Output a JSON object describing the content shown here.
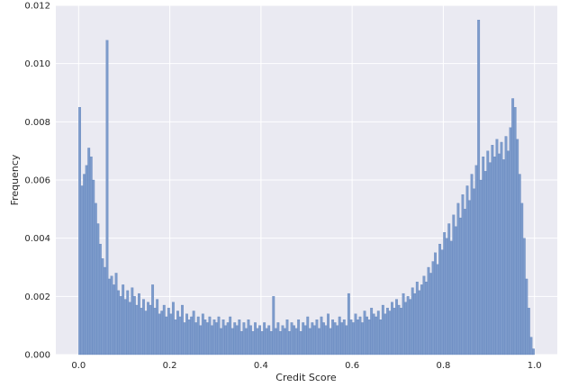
{
  "chart_data": {
    "type": "bar",
    "title": "",
    "xlabel": "Credit Score",
    "ylabel": "Frequency",
    "xlim": [
      -0.05,
      1.05
    ],
    "ylim": [
      0,
      0.012
    ],
    "xticks": [
      0.0,
      0.2,
      0.4,
      0.6,
      0.8,
      1.0
    ],
    "yticks": [
      0.0,
      0.002,
      0.004,
      0.006,
      0.008,
      0.01,
      0.012
    ],
    "xtick_labels": [
      "0.0",
      "0.2",
      "0.4",
      "0.6",
      "0.8",
      "1.0"
    ],
    "ytick_labels": [
      "0.000",
      "0.002",
      "0.004",
      "0.006",
      "0.008",
      "0.010",
      "0.012"
    ],
    "grid": true,
    "legend": "none",
    "bin_width": 0.005,
    "x": [
      0.0025,
      0.0075,
      0.0125,
      0.0175,
      0.0225,
      0.0275,
      0.0325,
      0.0375,
      0.0425,
      0.0475,
      0.0525,
      0.0575,
      0.0625,
      0.0675,
      0.0725,
      0.0775,
      0.0825,
      0.0875,
      0.0925,
      0.0975,
      0.1025,
      0.1075,
      0.1125,
      0.1175,
      0.1225,
      0.1275,
      0.1325,
      0.1375,
      0.1425,
      0.1475,
      0.1525,
      0.1575,
      0.1625,
      0.1675,
      0.1725,
      0.1775,
      0.1825,
      0.1875,
      0.1925,
      0.1975,
      0.2025,
      0.2075,
      0.2125,
      0.2175,
      0.2225,
      0.2275,
      0.2325,
      0.2375,
      0.2425,
      0.2475,
      0.2525,
      0.2575,
      0.2625,
      0.2675,
      0.2725,
      0.2775,
      0.2825,
      0.2875,
      0.2925,
      0.2975,
      0.3025,
      0.3075,
      0.3125,
      0.3175,
      0.3225,
      0.3275,
      0.3325,
      0.3375,
      0.3425,
      0.3475,
      0.3525,
      0.3575,
      0.3625,
      0.3675,
      0.3725,
      0.3775,
      0.3825,
      0.3875,
      0.3925,
      0.3975,
      0.4025,
      0.4075,
      0.4125,
      0.4175,
      0.4225,
      0.4275,
      0.4325,
      0.4375,
      0.4425,
      0.4475,
      0.4525,
      0.4575,
      0.4625,
      0.4675,
      0.4725,
      0.4775,
      0.4825,
      0.4875,
      0.4925,
      0.4975,
      0.5025,
      0.5075,
      0.5125,
      0.5175,
      0.5225,
      0.5275,
      0.5325,
      0.5375,
      0.5425,
      0.5475,
      0.5525,
      0.5575,
      0.5625,
      0.5675,
      0.5725,
      0.5775,
      0.5825,
      0.5875,
      0.5925,
      0.5975,
      0.6025,
      0.6075,
      0.6125,
      0.6175,
      0.6225,
      0.6275,
      0.6325,
      0.6375,
      0.6425,
      0.6475,
      0.6525,
      0.6575,
      0.6625,
      0.6675,
      0.6725,
      0.6775,
      0.6825,
      0.6875,
      0.6925,
      0.6975,
      0.7025,
      0.7075,
      0.7125,
      0.7175,
      0.7225,
      0.7275,
      0.7325,
      0.7375,
      0.7425,
      0.7475,
      0.7525,
      0.7575,
      0.7625,
      0.7675,
      0.7725,
      0.7775,
      0.7825,
      0.7875,
      0.7925,
      0.7975,
      0.8025,
      0.8075,
      0.8125,
      0.8175,
      0.8225,
      0.8275,
      0.8325,
      0.8375,
      0.8425,
      0.8475,
      0.8525,
      0.8575,
      0.8625,
      0.8675,
      0.8725,
      0.8775,
      0.8825,
      0.8875,
      0.8925,
      0.8975,
      0.9025,
      0.9075,
      0.9125,
      0.9175,
      0.9225,
      0.9275,
      0.9325,
      0.9375,
      0.9425,
      0.9475,
      0.9525,
      0.9575,
      0.9625,
      0.9675,
      0.9725,
      0.9775,
      0.9825,
      0.9875,
      0.9925,
      0.9975
    ],
    "values": [
      0.0085,
      0.0058,
      0.0062,
      0.0065,
      0.0071,
      0.0068,
      0.006,
      0.0052,
      0.0045,
      0.0038,
      0.0033,
      0.003,
      0.0108,
      0.0026,
      0.0027,
      0.0024,
      0.0028,
      0.0022,
      0.002,
      0.0024,
      0.0019,
      0.0022,
      0.0018,
      0.0023,
      0.002,
      0.0017,
      0.0021,
      0.0016,
      0.0019,
      0.0015,
      0.0018,
      0.0017,
      0.0024,
      0.0016,
      0.0019,
      0.0014,
      0.0015,
      0.0017,
      0.0013,
      0.0016,
      0.0014,
      0.0018,
      0.0012,
      0.0015,
      0.0013,
      0.0017,
      0.0011,
      0.0014,
      0.0012,
      0.0013,
      0.0015,
      0.0011,
      0.0013,
      0.001,
      0.0014,
      0.0012,
      0.0011,
      0.0013,
      0.001,
      0.0012,
      0.0011,
      0.0013,
      0.0009,
      0.0012,
      0.001,
      0.0011,
      0.0013,
      0.0009,
      0.0011,
      0.001,
      0.0012,
      0.0008,
      0.0011,
      0.0009,
      0.0012,
      0.001,
      0.0008,
      0.0011,
      0.0009,
      0.001,
      0.0008,
      0.0011,
      0.0009,
      0.001,
      0.0008,
      0.002,
      0.0009,
      0.0011,
      0.0008,
      0.001,
      0.0009,
      0.0012,
      0.0008,
      0.0011,
      0.001,
      0.0009,
      0.0012,
      0.0008,
      0.0011,
      0.001,
      0.0013,
      0.0009,
      0.0011,
      0.001,
      0.0012,
      0.0009,
      0.0013,
      0.0011,
      0.001,
      0.0014,
      0.0009,
      0.0012,
      0.0011,
      0.001,
      0.0013,
      0.0011,
      0.0012,
      0.001,
      0.0021,
      0.0012,
      0.0011,
      0.0014,
      0.0012,
      0.0013,
      0.0011,
      0.0015,
      0.0013,
      0.0012,
      0.0016,
      0.0014,
      0.0013,
      0.0015,
      0.0012,
      0.0017,
      0.0014,
      0.0016,
      0.0015,
      0.0018,
      0.0016,
      0.0019,
      0.0017,
      0.0016,
      0.0021,
      0.0018,
      0.002,
      0.0019,
      0.0023,
      0.0021,
      0.0025,
      0.0022,
      0.0024,
      0.0027,
      0.0025,
      0.003,
      0.0028,
      0.0032,
      0.0035,
      0.0031,
      0.0038,
      0.0036,
      0.0042,
      0.004,
      0.0045,
      0.0039,
      0.0048,
      0.0044,
      0.0052,
      0.0047,
      0.0055,
      0.005,
      0.0058,
      0.0053,
      0.0062,
      0.0057,
      0.0065,
      0.0115,
      0.006,
      0.0068,
      0.0063,
      0.007,
      0.0066,
      0.0072,
      0.0068,
      0.0074,
      0.0069,
      0.0073,
      0.0067,
      0.0075,
      0.007,
      0.0078,
      0.0088,
      0.0085,
      0.0074,
      0.0062,
      0.0052,
      0.004,
      0.0026,
      0.0016,
      0.0006,
      0.0002
    ]
  }
}
